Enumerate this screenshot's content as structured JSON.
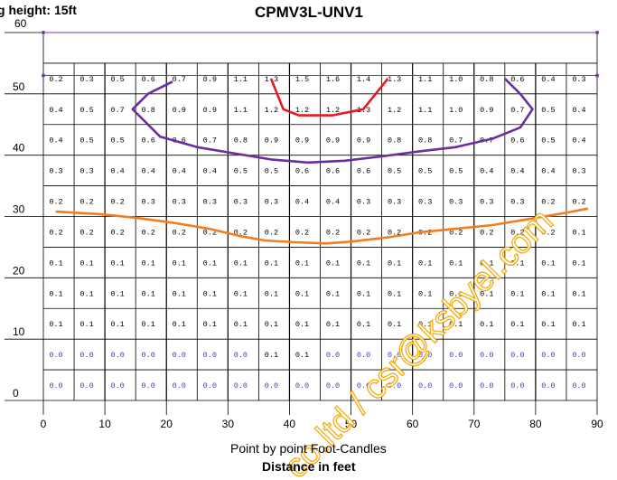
{
  "header": {
    "mounting_height": "g height: 15ft",
    "title": "CPMV3L-UNV1"
  },
  "chart_data": {
    "type": "heatmap",
    "title": "CPMV3L-UNV1",
    "subtitle": "Point by point Foot-Candles",
    "xlabel": "Distance in feet",
    "ylabel": "",
    "xlim": [
      0,
      90
    ],
    "ylim": [
      0,
      60
    ],
    "x_ticks": [
      0,
      10,
      20,
      30,
      40,
      50,
      60,
      70,
      80,
      90
    ],
    "y_ticks": [
      0,
      10,
      20,
      30,
      40,
      50,
      60
    ],
    "grid_columns_x": [
      2.5,
      7.5,
      12.5,
      17.5,
      22.5,
      27.5,
      32.5,
      37.5,
      42.5,
      47.5,
      52.5,
      57.5,
      62.5,
      67.5,
      72.5,
      77.5,
      82.5,
      87.5
    ],
    "grid_rows_y": [
      2.5,
      7.5,
      12.5,
      17.5,
      22.5,
      27.5,
      32.5,
      37.5,
      42.5,
      47.5,
      52.5
    ],
    "values": [
      [
        "0.2",
        "0.3",
        "0.5",
        "0.6",
        "0.7",
        "0.9",
        "1.1",
        "1.3",
        "1.5",
        "1.6",
        "1.4",
        "1.3",
        "1.1",
        "1.0",
        "0.8",
        "0.6",
        "0.4",
        "0.3"
      ],
      [
        "0.4",
        "0.5",
        "0.7",
        "0.8",
        "0.9",
        "0.9",
        "1.1",
        "1.2",
        "1.2",
        "1.2",
        "1.3",
        "1.2",
        "1.1",
        "1.0",
        "0.9",
        "0.7",
        "0.5",
        "0.4"
      ],
      [
        "0.4",
        "0.5",
        "0.5",
        "0.6",
        "0.6",
        "0.7",
        "0.8",
        "0.9",
        "0.9",
        "0.9",
        "0.9",
        "0.8",
        "0.8",
        "0.7",
        "0.7",
        "0.6",
        "0.5",
        "0.4"
      ],
      [
        "0.3",
        "0.3",
        "0.4",
        "0.4",
        "0.4",
        "0.4",
        "0.5",
        "0.5",
        "0.6",
        "0.6",
        "0.6",
        "0.5",
        "0.5",
        "0.5",
        "0.4",
        "0.4",
        "0.4",
        "0.3"
      ],
      [
        "0.2",
        "0.2",
        "0.2",
        "0.3",
        "0.3",
        "0.3",
        "0.3",
        "0.3",
        "0.4",
        "0.4",
        "0.3",
        "0.3",
        "0.3",
        "0.3",
        "0.3",
        "0.3",
        "0.2",
        "0.2"
      ],
      [
        "0.2",
        "0.2",
        "0.2",
        "0.2",
        "0.2",
        "0.2",
        "0.2",
        "0.2",
        "0.2",
        "0.2",
        "0.2",
        "0.2",
        "0.2",
        "0.2",
        "0.2",
        "0.2",
        "0.2",
        "0.1"
      ],
      [
        "0.1",
        "0.1",
        "0.1",
        "0.1",
        "0.1",
        "0.1",
        "0.1",
        "0.1",
        "0.1",
        "0.1",
        "0.1",
        "0.1",
        "0.1",
        "0.1",
        "0.1",
        "0.1",
        "0.1",
        "0.1"
      ],
      [
        "0.1",
        "0.1",
        "0.1",
        "0.1",
        "0.1",
        "0.1",
        "0.1",
        "0.1",
        "0.1",
        "0.1",
        "0.1",
        "0.1",
        "0.1",
        "0.1",
        "0.1",
        "0.1",
        "0.1",
        "0.1"
      ],
      [
        "0.1",
        "0.1",
        "0.1",
        "0.1",
        "0.1",
        "0.1",
        "0.1",
        "0.1",
        "0.1",
        "0.1",
        "0.1",
        "0.1",
        "0.1",
        "0.1",
        "0.1",
        "0.1",
        "0.1",
        "0.1"
      ],
      [
        "0.0",
        "0.0",
        "0.0",
        "0.0",
        "0.0",
        "0.0",
        "0.0",
        "0.1",
        "0.1",
        "0.0",
        "0.0",
        "0.0",
        "0.0",
        "0.0",
        "0.0",
        "0.0",
        "0.0",
        "0.0"
      ],
      [
        "0.0",
        "0.0",
        "0.0",
        "0.0",
        "0.0",
        "0.0",
        "0.0",
        "0.0",
        "0.0",
        "0.0",
        "0.0",
        "0.0",
        "0.0",
        "0.0",
        "0.0",
        "0.0",
        "0.0",
        "0.0"
      ]
    ],
    "value_colors": {
      "default": "#000000",
      "zero": "#3a3aa8"
    },
    "series": [
      {
        "color": "#e8191e",
        "type": "isoline",
        "points": [
          [
            37,
            52.5
          ],
          [
            39,
            47.5
          ],
          [
            41.5,
            46.5
          ],
          [
            44.5,
            46.5
          ],
          [
            47,
            46.5
          ],
          [
            52,
            47.5
          ],
          [
            56,
            52.5
          ]
        ]
      },
      {
        "color": "#6b2ea0",
        "type": "isoline",
        "points": [
          [
            21,
            52
          ],
          [
            17,
            50
          ],
          [
            14.5,
            47.5
          ],
          [
            19,
            43
          ],
          [
            25,
            41.3
          ],
          [
            31,
            40.3
          ],
          [
            37,
            39.3
          ],
          [
            43,
            38.8
          ],
          [
            49,
            39.1
          ],
          [
            55,
            39.8
          ],
          [
            61,
            40.6
          ],
          [
            67,
            41.3
          ],
          [
            73,
            42.7
          ],
          [
            77.5,
            44.5
          ],
          [
            79.5,
            47.5
          ],
          [
            77.5,
            50
          ],
          [
            75,
            52.5
          ]
        ]
      },
      {
        "color": "#f07d1e",
        "type": "isoline",
        "points": [
          [
            2,
            30.8
          ],
          [
            9,
            30.4
          ],
          [
            15,
            29.8
          ],
          [
            21,
            29
          ],
          [
            27,
            28
          ],
          [
            32,
            26.8
          ],
          [
            36,
            26.1
          ],
          [
            41,
            25.8
          ],
          [
            46,
            25.6
          ],
          [
            50,
            25.9
          ],
          [
            56,
            26.6
          ],
          [
            61,
            27.4
          ],
          [
            67,
            28
          ],
          [
            73,
            28.6
          ],
          [
            79,
            29.6
          ],
          [
            85,
            30.6
          ],
          [
            88.5,
            31.3
          ]
        ]
      }
    ],
    "markers": [
      [
        0,
        60
      ],
      [
        90,
        60
      ],
      [
        0,
        53
      ],
      [
        90,
        53
      ]
    ],
    "grid": true,
    "legend": "none"
  },
  "watermark": "co.ltd / csr@ksbyel.com"
}
